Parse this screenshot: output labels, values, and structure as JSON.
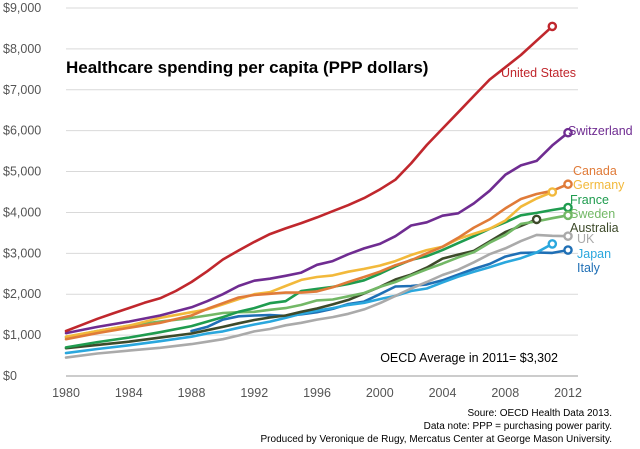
{
  "chart_data": {
    "type": "line",
    "title": "Healthcare spending per capita (PPP dollars)",
    "xlabel": "",
    "ylabel": "",
    "xlim": [
      1980,
      2012
    ],
    "ylim": [
      0,
      9000
    ],
    "x_ticks": [
      "1980",
      "1984",
      "1988",
      "1992",
      "1996",
      "2000",
      "2004",
      "2008",
      "2012"
    ],
    "y_ticks": [
      "$0",
      "$1,000",
      "$2,000",
      "$3,000",
      "$4,000",
      "$5,000",
      "$6,000",
      "$7,000",
      "$8,000",
      "$9,000"
    ],
    "grid": true,
    "annotation": "OECD Average in 2011= $3,302",
    "series": [
      {
        "name": "United States",
        "color": "#c0272d",
        "x": [
          1980,
          1981,
          1982,
          1983,
          1984,
          1985,
          1986,
          1987,
          1988,
          1989,
          1990,
          1991,
          1992,
          1993,
          1994,
          1995,
          1996,
          1997,
          1998,
          1999,
          2000,
          2001,
          2002,
          2003,
          2004,
          2005,
          2006,
          2007,
          2008,
          2009,
          2010,
          2011
        ],
        "y": [
          1100,
          1250,
          1400,
          1530,
          1660,
          1790,
          1900,
          2080,
          2300,
          2560,
          2850,
          3070,
          3280,
          3470,
          3610,
          3740,
          3880,
          4030,
          4180,
          4350,
          4560,
          4800,
          5200,
          5650,
          6050,
          6450,
          6850,
          7250,
          7550,
          7850,
          8200,
          8550
        ]
      },
      {
        "name": "Switzerland",
        "color": "#6f2c91",
        "x": [
          1980,
          1982,
          1984,
          1986,
          1988,
          1989,
          1990,
          1991,
          1992,
          1993,
          1994,
          1995,
          1996,
          1997,
          1998,
          1999,
          2000,
          2001,
          2002,
          2003,
          2004,
          2005,
          2006,
          2007,
          2008,
          2009,
          2010,
          2011,
          2012
        ],
        "y": [
          1050,
          1200,
          1330,
          1480,
          1680,
          1830,
          2000,
          2200,
          2330,
          2380,
          2450,
          2530,
          2720,
          2810,
          2980,
          3120,
          3230,
          3420,
          3680,
          3760,
          3920,
          3980,
          4220,
          4530,
          4920,
          5150,
          5260,
          5640,
          5950
        ]
      },
      {
        "name": "Canada",
        "color": "#e07b39",
        "x": [
          1980,
          1982,
          1984,
          1986,
          1988,
          1989,
          1990,
          1991,
          1992,
          1993,
          1994,
          1995,
          1996,
          1997,
          1998,
          1999,
          2000,
          2001,
          2002,
          2003,
          2004,
          2005,
          2006,
          2007,
          2008,
          2009,
          2010,
          2011,
          2012
        ],
        "y": [
          900,
          1050,
          1180,
          1300,
          1480,
          1640,
          1780,
          1920,
          1980,
          2010,
          2040,
          2040,
          2070,
          2170,
          2300,
          2420,
          2550,
          2710,
          2830,
          3000,
          3160,
          3380,
          3630,
          3830,
          4100,
          4330,
          4450,
          4530,
          4690
        ]
      },
      {
        "name": "Germany",
        "color": "#f2b93b",
        "x": [
          1980,
          1982,
          1984,
          1986,
          1988,
          1989,
          1990,
          1991,
          1992,
          1993,
          1994,
          1995,
          1996,
          1997,
          1998,
          1999,
          2000,
          2001,
          2002,
          2003,
          2004,
          2005,
          2006,
          2007,
          2008,
          2009,
          2010,
          2011
        ],
        "y": [
          960,
          1100,
          1230,
          1420,
          1560,
          1630,
          1750,
          1880,
          2000,
          2050,
          2200,
          2350,
          2420,
          2460,
          2550,
          2620,
          2700,
          2810,
          2960,
          3080,
          3160,
          3350,
          3480,
          3600,
          3800,
          4140,
          4340,
          4500
        ]
      },
      {
        "name": "France",
        "color": "#1f9c4f",
        "x": [
          1980,
          1982,
          1984,
          1986,
          1988,
          1989,
          1990,
          1991,
          1992,
          1993,
          1994,
          1995,
          1996,
          1997,
          1998,
          1999,
          2000,
          2001,
          2002,
          2003,
          2004,
          2005,
          2006,
          2007,
          2008,
          2009,
          2010,
          2011,
          2012
        ],
        "y": [
          700,
          830,
          940,
          1070,
          1220,
          1330,
          1440,
          1570,
          1660,
          1780,
          1830,
          2080,
          2130,
          2180,
          2250,
          2340,
          2500,
          2680,
          2840,
          2930,
          3080,
          3250,
          3420,
          3600,
          3760,
          3930,
          3990,
          4060,
          4120
        ]
      },
      {
        "name": "Sweden",
        "color": "#73b866",
        "x": [
          1980,
          1982,
          1984,
          1986,
          1988,
          1989,
          1990,
          1991,
          1992,
          1993,
          1994,
          1995,
          1996,
          1997,
          1998,
          1999,
          2000,
          2001,
          2002,
          2003,
          2004,
          2005,
          2006,
          2007,
          2008,
          2009,
          2010,
          2011,
          2012
        ],
        "y": [
          950,
          1100,
          1230,
          1330,
          1420,
          1480,
          1540,
          1560,
          1570,
          1620,
          1660,
          1740,
          1850,
          1870,
          1950,
          2030,
          2180,
          2300,
          2460,
          2610,
          2750,
          2900,
          3030,
          3260,
          3450,
          3720,
          3780,
          3860,
          3930
        ]
      },
      {
        "name": "Australia",
        "color": "#3d4a2a",
        "x": [
          1980,
          1982,
          1984,
          1986,
          1988,
          1989,
          1990,
          1991,
          1992,
          1993,
          1994,
          1995,
          1996,
          1997,
          1998,
          1999,
          2000,
          2001,
          2002,
          2003,
          2004,
          2005,
          2006,
          2007,
          2008,
          2009,
          2010
        ],
        "y": [
          680,
          760,
          840,
          940,
          1040,
          1120,
          1200,
          1290,
          1370,
          1430,
          1480,
          1570,
          1650,
          1750,
          1860,
          2020,
          2180,
          2360,
          2480,
          2650,
          2870,
          2970,
          3060,
          3290,
          3520,
          3670,
          3830
        ]
      },
      {
        "name": "UK",
        "color": "#aaaaaa",
        "x": [
          1980,
          1982,
          1984,
          1986,
          1988,
          1989,
          1990,
          1991,
          1992,
          1993,
          1994,
          1995,
          1996,
          1997,
          1998,
          1999,
          2000,
          2001,
          2002,
          2003,
          2004,
          2005,
          2006,
          2007,
          2008,
          2009,
          2010,
          2011,
          2012
        ],
        "y": [
          450,
          550,
          620,
          690,
          780,
          840,
          900,
          990,
          1090,
          1150,
          1240,
          1300,
          1380,
          1440,
          1520,
          1630,
          1780,
          1960,
          2140,
          2300,
          2470,
          2600,
          2780,
          2980,
          3120,
          3300,
          3450,
          3430,
          3420
        ]
      },
      {
        "name": "Japan",
        "color": "#2aa7dd",
        "x": [
          1980,
          1982,
          1984,
          1986,
          1988,
          1989,
          1990,
          1991,
          1992,
          1993,
          1994,
          1995,
          1996,
          1997,
          1998,
          1999,
          2000,
          2001,
          2002,
          2003,
          2004,
          2005,
          2006,
          2007,
          2008,
          2009,
          2010,
          2011
        ],
        "y": [
          560,
          660,
          750,
          850,
          960,
          1040,
          1090,
          1180,
          1260,
          1330,
          1420,
          1520,
          1600,
          1660,
          1740,
          1790,
          1880,
          1960,
          2080,
          2140,
          2290,
          2430,
          2550,
          2660,
          2780,
          2880,
          3020,
          3230
        ]
      },
      {
        "name": "Italy",
        "color": "#1f6fb5",
        "x": [
          1988,
          1989,
          1990,
          1991,
          1992,
          1993,
          1994,
          1995,
          1996,
          1997,
          1998,
          1999,
          2000,
          2001,
          2002,
          2003,
          2004,
          2005,
          2006,
          2007,
          2008,
          2009,
          2010,
          2011,
          2012
        ],
        "y": [
          1100,
          1200,
          1380,
          1460,
          1480,
          1490,
          1470,
          1510,
          1560,
          1640,
          1760,
          1820,
          2000,
          2190,
          2200,
          2240,
          2340,
          2480,
          2620,
          2740,
          2920,
          3010,
          3020,
          3010,
          3080
        ]
      }
    ],
    "endpoints": [
      "United States",
      "Switzerland",
      "Canada",
      "Germany",
      "France",
      "Sweden",
      "Australia",
      "UK",
      "Japan",
      "Italy"
    ]
  },
  "footer": {
    "line1": "Soure: OECD Health Data 2013.",
    "line2": "Data note: PPP = purchasing power parity.",
    "line3": "Produced by Veronique de Rugy, Mercatus Center at George Mason University."
  }
}
